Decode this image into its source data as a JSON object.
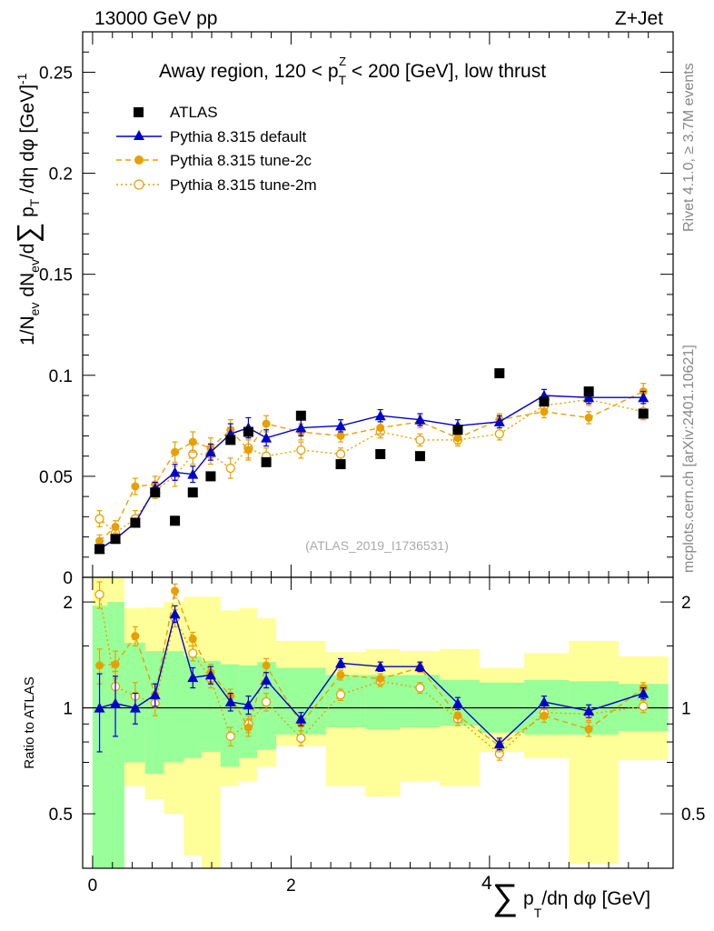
{
  "header": {
    "left": "13000 GeV pp",
    "right": "Z+Jet"
  },
  "side": {
    "rivet": "Rivet 4.1.0, ≥ 3.7M events",
    "mcplots": "mcplots.cern.ch [arXiv:2401.10621]"
  },
  "chart_data": [
    {
      "type": "scatter",
      "panel": "main",
      "title": "Away region, 120 < p_T^Z < 200 [GeV], low thrust",
      "title_parts": {
        "a": "Away region, 120 < p",
        "sub": "T",
        "sup": "Z",
        "b": " < 200 [GeV], low thrust"
      },
      "ylabel": "1/N_ev dN_ev/dΣ p_T/dη dφ [GeV]^-1",
      "ylabel_parts": {
        "p1": "1/N",
        "s1": "ev",
        "p2": " dN",
        "s2": "ev",
        "p3": "/d",
        "sum": "∑",
        "p4": " p",
        "s3": "T",
        "p5": " /dη dφ  [GeV]",
        "sup": "-1"
      },
      "xlim": [
        -0.1,
        5.85
      ],
      "ylim": [
        0,
        0.27
      ],
      "yticks": [
        0,
        0.05,
        0.1,
        0.15,
        0.2,
        0.25
      ],
      "ytick_labels": [
        "0",
        "0.05",
        "0.1",
        "0.15",
        "0.2",
        "0.25"
      ],
      "watermark": "(ATLAS_2019_I1736531)",
      "legend": [
        "ATLAS",
        "Pythia 8.315 default",
        "Pythia 8.315 tune-2c",
        "Pythia 8.315 tune-2m"
      ],
      "series": [
        {
          "name": "ATLAS",
          "color": "#000000",
          "x": [
            0.07,
            0.23,
            0.43,
            0.63,
            0.83,
            1.01,
            1.19,
            1.39,
            1.57,
            1.75,
            2.1,
            2.5,
            2.9,
            3.3,
            3.68,
            4.1,
            4.55,
            5.0,
            5.55
          ],
          "y": [
            0.014,
            0.019,
            0.027,
            0.042,
            0.028,
            0.042,
            0.05,
            0.068,
            0.072,
            0.057,
            0.08,
            0.056,
            0.061,
            0.06,
            0.073,
            0.101,
            0.087,
            0.092,
            0.081
          ]
        },
        {
          "name": "Pythia 8.315 default",
          "color": "#0000cc",
          "x": [
            0.07,
            0.23,
            0.43,
            0.63,
            0.83,
            1.01,
            1.19,
            1.39,
            1.57,
            1.75,
            2.1,
            2.5,
            2.9,
            3.3,
            3.68,
            4.1,
            4.55,
            5.0,
            5.55
          ],
          "y": [
            0.014,
            0.019,
            0.027,
            0.044,
            0.052,
            0.051,
            0.062,
            0.071,
            0.074,
            0.069,
            0.074,
            0.075,
            0.08,
            0.078,
            0.075,
            0.077,
            0.09,
            0.089,
            0.089
          ],
          "err": [
            0.002,
            0.002,
            0.002,
            0.003,
            0.004,
            0.004,
            0.004,
            0.005,
            0.005,
            0.004,
            0.004,
            0.003,
            0.003,
            0.003,
            0.003,
            0.003,
            0.003,
            0.003,
            0.003
          ]
        },
        {
          "name": "Pythia 8.315 tune-2c",
          "color": "#e8a000",
          "x": [
            0.07,
            0.23,
            0.43,
            0.63,
            0.83,
            1.01,
            1.19,
            1.39,
            1.57,
            1.75,
            2.1,
            2.5,
            2.9,
            3.3,
            3.68,
            4.1,
            4.55,
            5.0,
            5.55
          ],
          "y": [
            0.018,
            0.025,
            0.045,
            0.046,
            0.062,
            0.067,
            0.064,
            0.073,
            0.063,
            0.076,
            0.072,
            0.07,
            0.074,
            0.077,
            0.069,
            0.078,
            0.082,
            0.079,
            0.092
          ],
          "err": [
            0.003,
            0.003,
            0.004,
            0.004,
            0.005,
            0.005,
            0.005,
            0.005,
            0.005,
            0.004,
            0.004,
            0.003,
            0.003,
            0.003,
            0.003,
            0.003,
            0.003,
            0.003,
            0.004
          ]
        },
        {
          "name": "Pythia 8.315 tune-2m",
          "color": "#e8a000",
          "x": [
            0.07,
            0.23,
            0.43,
            0.63,
            0.83,
            1.01,
            1.19,
            1.39,
            1.57,
            1.75,
            2.1,
            2.5,
            2.9,
            3.3,
            3.68,
            4.1,
            4.55,
            5.0,
            5.55
          ],
          "y": [
            0.029,
            0.022,
            0.029,
            0.043,
            0.05,
            0.061,
            0.061,
            0.054,
            0.064,
            0.06,
            0.063,
            0.061,
            0.072,
            0.068,
            0.068,
            0.071,
            0.085,
            0.088,
            0.082
          ],
          "err": [
            0.004,
            0.003,
            0.004,
            0.004,
            0.005,
            0.005,
            0.005,
            0.005,
            0.005,
            0.004,
            0.004,
            0.003,
            0.003,
            0.003,
            0.003,
            0.003,
            0.003,
            0.003,
            0.004
          ]
        }
      ]
    },
    {
      "type": "line",
      "panel": "ratio",
      "ylabel": "Ratio to ATLAS",
      "xlabel": "Σ p_T/dη dφ [GeV]",
      "xlabel_parts": {
        "pre": "4",
        "sum": "∑",
        "p": " p",
        "sub": "T",
        "post": "/dη dφ [GeV]"
      },
      "xlim": [
        -0.1,
        5.85
      ],
      "ylim": [
        0.35,
        2.35
      ],
      "ylog": true,
      "yticks": [
        0.5,
        1,
        2
      ],
      "ytick_labels": [
        "0.5",
        "1",
        "2"
      ],
      "xticks": [
        0,
        2
      ],
      "xtick_labels": [
        "0",
        "2"
      ],
      "bins": {
        "edges": [
          0,
          0.15,
          0.32,
          0.53,
          0.72,
          0.92,
          1.1,
          1.29,
          1.48,
          1.66,
          1.85,
          2.35,
          2.75,
          3.1,
          3.5,
          3.9,
          4.35,
          4.8,
          5.3,
          5.8
        ],
        "green_lo": [
          0.35,
          0.35,
          0.7,
          0.65,
          0.7,
          0.72,
          0.75,
          0.68,
          0.72,
          0.76,
          0.84,
          0.88,
          0.87,
          0.88,
          0.89,
          0.85,
          0.84,
          0.84,
          0.86
        ],
        "green_hi": [
          1.95,
          2.0,
          1.53,
          1.45,
          1.45,
          1.4,
          1.36,
          1.33,
          1.32,
          1.35,
          1.3,
          1.24,
          1.24,
          1.24,
          1.2,
          1.18,
          1.2,
          1.19,
          1.17
        ],
        "yellow_lo": [
          0.35,
          0.35,
          0.6,
          0.55,
          0.5,
          0.38,
          0.35,
          0.6,
          0.62,
          0.68,
          0.78,
          0.6,
          0.56,
          0.62,
          0.6,
          0.75,
          0.72,
          0.36,
          0.71
        ],
        "yellow_hi": [
          2.35,
          2.35,
          1.92,
          1.93,
          2.0,
          2.07,
          2.07,
          1.89,
          1.92,
          1.8,
          1.55,
          1.44,
          1.47,
          1.45,
          1.47,
          1.3,
          1.43,
          1.55,
          1.4
        ]
      },
      "series": [
        {
          "name": "Pythia 8.315 default / ATLAS",
          "color": "#0000cc",
          "x": [
            0.07,
            0.23,
            0.43,
            0.63,
            0.83,
            1.01,
            1.19,
            1.39,
            1.57,
            1.75,
            2.1,
            2.5,
            2.9,
            3.3,
            3.68,
            4.1,
            4.55,
            5.0,
            5.55
          ],
          "y": [
            1.0,
            1.03,
            1.0,
            1.09,
            1.85,
            1.22,
            1.24,
            1.04,
            1.02,
            1.2,
            0.93,
            1.34,
            1.31,
            1.31,
            1.03,
            0.79,
            1.04,
            0.98,
            1.1
          ],
          "err": [
            0.25,
            0.2,
            0.1,
            0.08,
            0.1,
            0.08,
            0.07,
            0.06,
            0.06,
            0.06,
            0.04,
            0.04,
            0.04,
            0.04,
            0.04,
            0.03,
            0.04,
            0.04,
            0.04
          ]
        },
        {
          "name": "Pythia 8.315 tune-2c / ATLAS",
          "color": "#e8a000",
          "x": [
            0.07,
            0.23,
            0.43,
            0.63,
            0.83,
            1.01,
            1.19,
            1.39,
            1.57,
            1.75,
            2.1,
            2.5,
            2.9,
            3.3,
            3.68,
            4.1,
            4.55,
            5.0,
            5.55
          ],
          "y": [
            1.32,
            1.33,
            1.6,
            1.09,
            2.15,
            1.57,
            1.26,
            1.08,
            0.88,
            1.32,
            0.9,
            1.24,
            1.21,
            1.3,
            0.95,
            0.78,
            0.95,
            0.87,
            1.14
          ],
          "err": [
            0.15,
            0.12,
            0.1,
            0.08,
            0.1,
            0.07,
            0.07,
            0.05,
            0.05,
            0.06,
            0.04,
            0.04,
            0.04,
            0.04,
            0.04,
            0.03,
            0.04,
            0.04,
            0.04
          ]
        },
        {
          "name": "Pythia 8.315 tune-2m / ATLAS",
          "color": "#e8a000",
          "x": [
            0.07,
            0.23,
            0.43,
            0.63,
            0.83,
            1.01,
            1.19,
            1.39,
            1.57,
            1.75,
            2.1,
            2.5,
            2.9,
            3.3,
            3.68,
            4.1,
            4.55,
            5.0,
            5.55
          ],
          "y": [
            2.1,
            1.15,
            1.08,
            1.03,
            1.8,
            1.43,
            1.21,
            0.83,
            0.9,
            1.04,
            0.82,
            1.09,
            1.19,
            1.14,
            0.93,
            0.74,
            0.97,
            0.96,
            1.01
          ],
          "err": [
            0.18,
            0.12,
            0.1,
            0.08,
            0.1,
            0.07,
            0.07,
            0.05,
            0.05,
            0.06,
            0.04,
            0.04,
            0.04,
            0.04,
            0.04,
            0.03,
            0.04,
            0.04,
            0.04
          ]
        }
      ]
    }
  ]
}
